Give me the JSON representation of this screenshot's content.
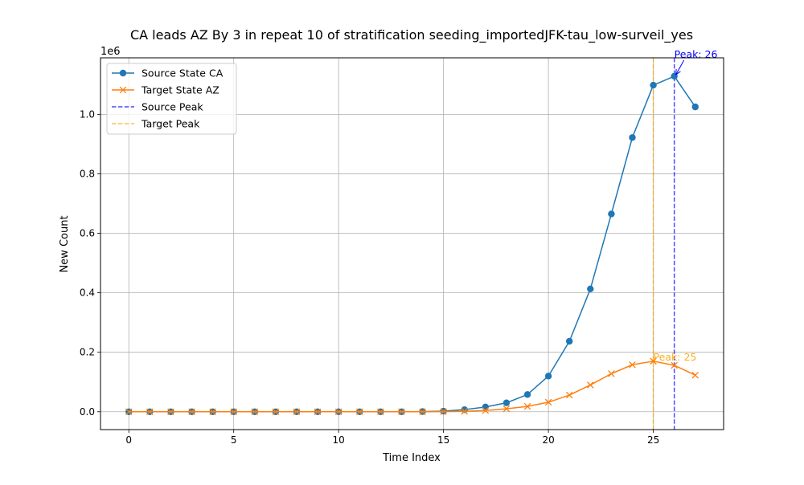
{
  "chart_data": {
    "type": "line",
    "title": "CA leads AZ By 3 in repeat 10 of stratification seeding_importedJFK-tau_low-surveil_yes",
    "xlabel": "Time Index",
    "ylabel": "New Count",
    "y_scale_label": "1e6",
    "xlim": [
      -1.35,
      28.35
    ],
    "ylim": [
      -60000,
      1190000
    ],
    "x_ticks": [
      0,
      5,
      10,
      15,
      20,
      25
    ],
    "x_tick_labels": [
      "0",
      "5",
      "10",
      "15",
      "20",
      "25"
    ],
    "y_ticks": [
      0,
      200000,
      400000,
      600000,
      800000,
      1000000
    ],
    "y_tick_labels": [
      "0.0",
      "0.2",
      "0.4",
      "0.6",
      "0.8",
      "1.0"
    ],
    "grid": true,
    "legend_position": "top-left",
    "x": [
      0,
      1,
      2,
      3,
      4,
      5,
      6,
      7,
      8,
      9,
      10,
      11,
      12,
      13,
      14,
      15,
      16,
      17,
      18,
      19,
      20,
      21,
      22,
      23,
      24,
      25,
      26,
      27
    ],
    "series": [
      {
        "name": "Source State CA",
        "color": "#1f77b4",
        "marker": "circle",
        "values": [
          0,
          0,
          0,
          0,
          0,
          0,
          0,
          0,
          0,
          0,
          0,
          0,
          0,
          0,
          500,
          2000,
          7000,
          16000,
          30000,
          58000,
          120000,
          237000,
          413000,
          665000,
          922000,
          1098000,
          1128000,
          1025000
        ]
      },
      {
        "name": "Target State AZ",
        "color": "#ff7f0e",
        "marker": "x",
        "values": [
          0,
          0,
          0,
          0,
          0,
          0,
          0,
          0,
          0,
          0,
          0,
          0,
          0,
          0,
          0,
          500,
          1500,
          4000,
          10000,
          18000,
          32000,
          56000,
          90000,
          128000,
          158000,
          170000,
          156000,
          123000
        ]
      }
    ],
    "reference_lines": [
      {
        "name": "Source Peak",
        "x": 26,
        "color": "#0000ff",
        "style": "dashed"
      },
      {
        "name": "Target Peak",
        "x": 25,
        "color": "#ffa500",
        "style": "dashed"
      }
    ],
    "annotations": [
      {
        "text": "Peak: 26",
        "x": 26,
        "y": 1128000,
        "text_x": 26,
        "text_y": 1190000,
        "color": "#0000ff",
        "arrow": true
      },
      {
        "text": "Peak: 25",
        "x": 25,
        "y": 170000,
        "text_x": 25,
        "text_y": 170000,
        "color": "#ffa500",
        "arrow": false
      }
    ]
  }
}
